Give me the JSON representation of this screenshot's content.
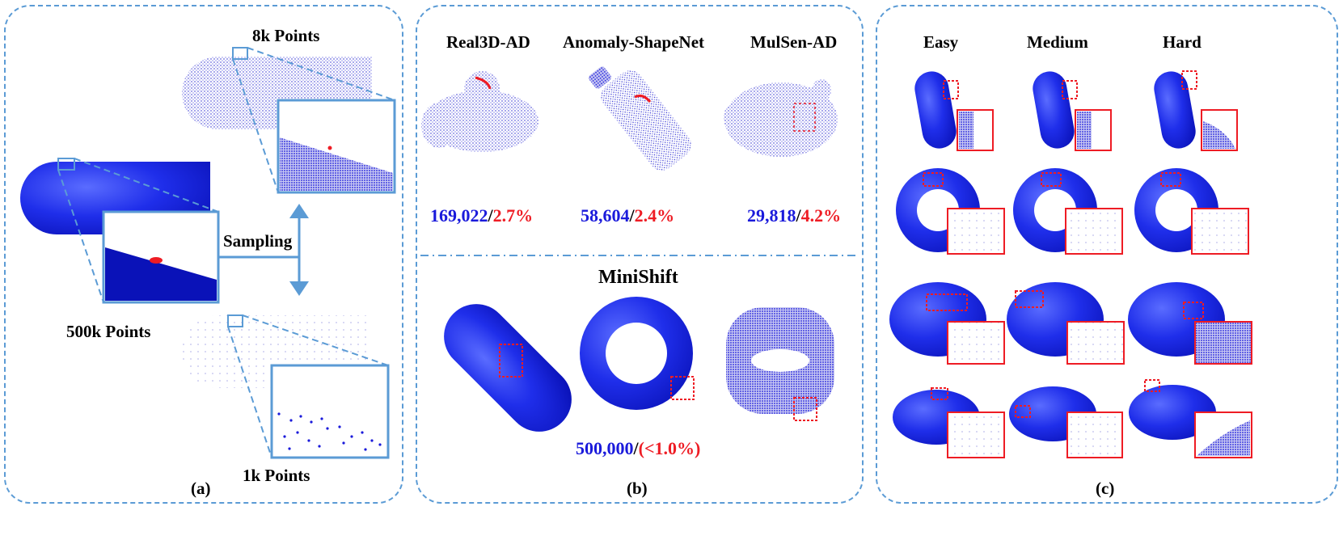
{
  "panel_a": {
    "caption": "(a)",
    "label_8k": "8k Points",
    "label_500k": "500k Points",
    "label_1k": "1k Points",
    "label_sampling": "Sampling"
  },
  "panel_b": {
    "caption": "(b)",
    "datasets": [
      {
        "name": "Real3D-AD",
        "count": "169,022",
        "sep": "/",
        "ratio": "2.7%"
      },
      {
        "name": "Anomaly-ShapeNet",
        "count": "58,604",
        "sep": "/",
        "ratio": "2.4%"
      },
      {
        "name": "MulSen-AD",
        "count": "29,818",
        "sep": "/",
        "ratio": "4.2%"
      }
    ],
    "minishift": {
      "name": "MiniShift",
      "count": "500,000",
      "sep": "/",
      "ratio": "(<1.0%)"
    }
  },
  "panel_c": {
    "caption": "(c)",
    "columns": [
      "Easy",
      "Medium",
      "Hard"
    ]
  },
  "colors": {
    "border": "#5b9bd5",
    "points": "#1a1adb",
    "anomaly": "#ee1c24"
  }
}
